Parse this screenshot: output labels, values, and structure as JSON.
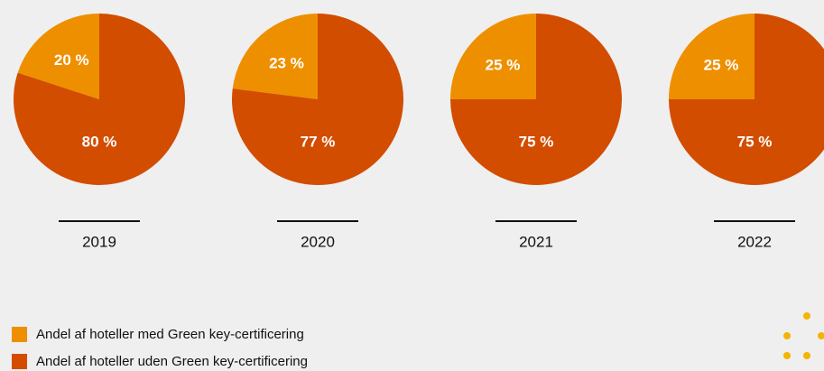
{
  "chart_data": {
    "type": "pie",
    "categories": [
      "Andel af hoteller med Green key-certificering",
      "Andel af hoteller uden Green key-certificering"
    ],
    "colors": [
      "#ee8f00",
      "#d24d00"
    ],
    "pies": [
      {
        "title": "2019",
        "values": [
          20,
          80
        ],
        "value_labels": [
          "20 %",
          "80 %"
        ]
      },
      {
        "title": "2020",
        "values": [
          23,
          77
        ],
        "value_labels": [
          "23 %",
          "77 %"
        ]
      },
      {
        "title": "2021",
        "values": [
          25,
          75
        ],
        "value_labels": [
          "25 %",
          "75 %"
        ]
      },
      {
        "title": "2022",
        "values": [
          25,
          75
        ],
        "value_labels": [
          "25 %",
          "75 %"
        ]
      }
    ]
  }
}
